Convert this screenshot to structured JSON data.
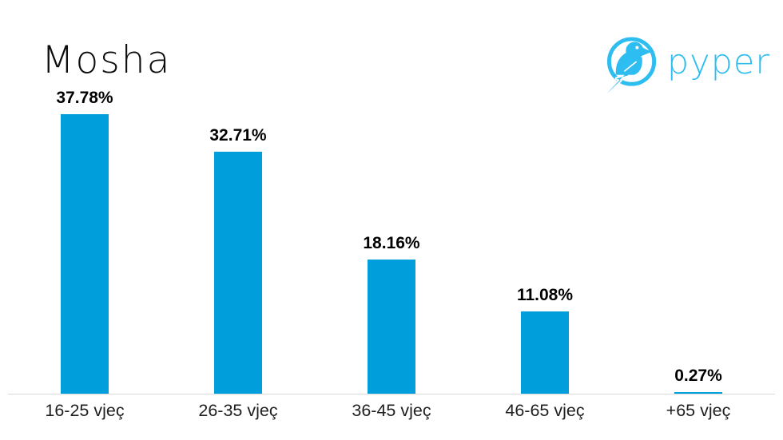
{
  "header": {
    "title": "Mosha",
    "logo": {
      "brand": "pyper",
      "color": "#2ebdf0"
    }
  },
  "chart_data": {
    "type": "bar",
    "title": "Mosha",
    "categories": [
      "16-25 vjeç",
      "26-35 vjeç",
      "36-45 vjeç",
      "46-65 vjeç",
      "+65 vjeç"
    ],
    "values": [
      37.78,
      32.71,
      18.16,
      11.08,
      0.27
    ],
    "data_labels": [
      "37.78%",
      "32.71%",
      "18.16%",
      "11.08%",
      "0.27%"
    ],
    "xlabel": "",
    "ylabel": "",
    "ylim": [
      0,
      40
    ],
    "grid": false,
    "legend": false,
    "data_labels_position": "above-bar",
    "bar_color": "#009edb",
    "value_label_color": "#000000",
    "category_label_color": "#1f1f1f",
    "axis_line_color": "#d9d9d9"
  }
}
